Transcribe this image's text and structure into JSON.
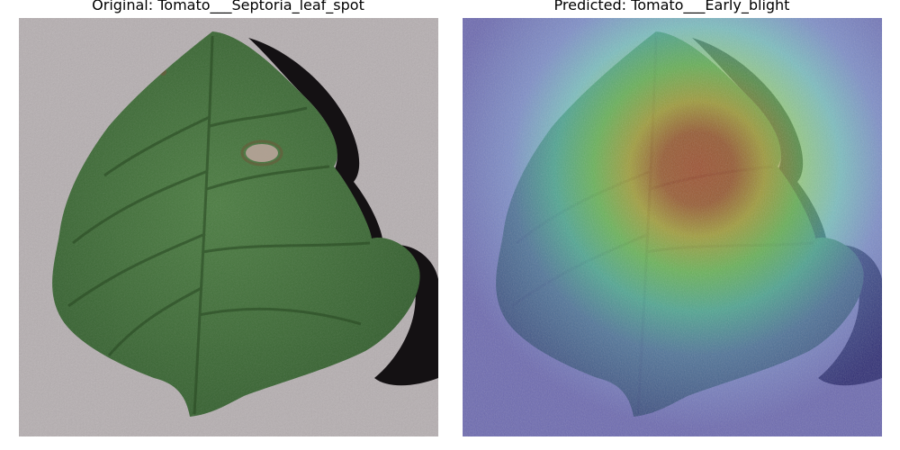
{
  "panels": [
    {
      "title": "Original: Tomato___Septoria_leaf_spot",
      "image": "tomato-leaf-photo"
    },
    {
      "title": "Predicted: Tomato___Early_blight",
      "image": "tomato-leaf-heatmap-overlay"
    }
  ],
  "colors": {
    "background_surface": "#b5aeb0",
    "leaf": "#3f6f38",
    "leaf_dark": "#2c5227",
    "lesion": "#b9a49a",
    "heatmap_low": "#3f3fb0",
    "heatmap_mid": "#7fd96a",
    "heatmap_high": "#d23a2a"
  }
}
